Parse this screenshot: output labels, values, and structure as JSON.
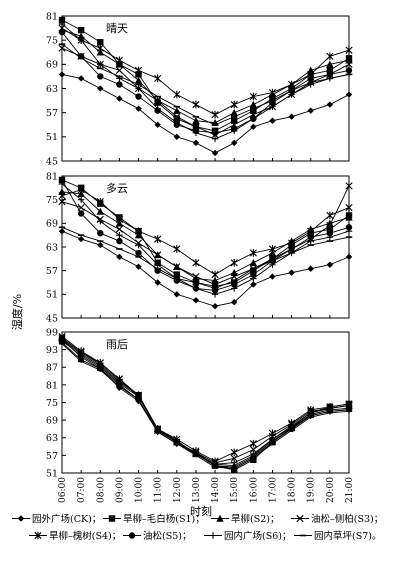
{
  "figure": {
    "ylabel": "湿度/%",
    "xlabel": "时刻"
  },
  "chart_data": {
    "type": "line",
    "x": [
      "06:00",
      "07:00",
      "08:00",
      "09:00",
      "10:00",
      "11:00",
      "12:00",
      "13:00",
      "14:00",
      "15:00",
      "16:00",
      "17:00",
      "18:00",
      "19:00",
      "20:00",
      "21:00"
    ],
    "panels": [
      {
        "title": "晴天",
        "ylim": [
          45,
          81
        ],
        "yticks": [
          45,
          51,
          57,
          63,
          69,
          75,
          81
        ],
        "series": [
          {
            "name": "园外广场(CK)",
            "marker": "diamond",
            "values": [
              66.5,
              65.5,
              63.0,
              60.5,
              58.0,
              54.0,
              51.0,
              49.5,
              47.0,
              49.5,
              53.5,
              55.0,
              56.0,
              57.5,
              59.0,
              61.5
            ]
          },
          {
            "name": "旱柳–毛白杨(S1)",
            "marker": "square",
            "values": [
              80.0,
              77.5,
              74.5,
              69.0,
              66.5,
              59.5,
              55.5,
              53.5,
              52.5,
              55.0,
              57.5,
              60.5,
              63.0,
              66.5,
              67.5,
              70.5
            ]
          },
          {
            "name": "旱柳(S2)",
            "marker": "triangle",
            "values": [
              77.5,
              76.0,
              72.0,
              69.0,
              65.0,
              60.0,
              57.5,
              55.0,
              54.5,
              57.0,
              59.0,
              61.5,
              64.0,
              67.5,
              69.0,
              70.0
            ]
          },
          {
            "name": "油松–侧柏(S3)",
            "marker": "x",
            "values": [
              73.0,
              71.0,
              69.0,
              67.5,
              63.0,
              60.0,
              56.0,
              53.5,
              51.5,
              54.0,
              56.5,
              58.5,
              61.5,
              64.5,
              66.5,
              69.0
            ]
          },
          {
            "name": "旱柳–槐树(S4)",
            "marker": "asterisk",
            "values": [
              78.0,
              75.0,
              73.0,
              70.0,
              67.5,
              65.5,
              61.5,
              59.0,
              56.5,
              59.0,
              61.0,
              62.0,
              64.0,
              66.5,
              71.0,
              72.5
            ]
          },
          {
            "name": "油松(S5)",
            "marker": "circle",
            "values": [
              77.0,
              71.0,
              66.0,
              64.0,
              61.0,
              57.5,
              54.0,
              52.5,
              52.0,
              53.0,
              55.5,
              59.5,
              62.5,
              65.5,
              66.5,
              67.5
            ]
          },
          {
            "name": "园内广场(S6)",
            "marker": "plus",
            "values": [
              79.0,
              75.0,
              69.0,
              65.5,
              63.0,
              58.0,
              54.5,
              52.0,
              50.5,
              52.5,
              55.5,
              58.5,
              61.5,
              64.0,
              65.5,
              66.5
            ]
          },
          {
            "name": "园内草坪(S7)",
            "marker": "dash",
            "values": [
              74.0,
              70.5,
              68.0,
              66.0,
              64.0,
              61.0,
              58.5,
              56.0,
              54.0,
              56.0,
              58.0,
              60.0,
              62.5,
              64.5,
              65.5,
              66.5
            ]
          }
        ]
      },
      {
        "title": "多云",
        "ylim": [
          45,
          81
        ],
        "yticks": [
          45,
          51,
          57,
          63,
          69,
          75,
          81
        ],
        "series": [
          {
            "name": "园外广场(CK)",
            "marker": "diamond",
            "values": [
              67.0,
              65.0,
              63.5,
              60.5,
              58.0,
              54.0,
              51.0,
              49.5,
              48.0,
              49.0,
              53.5,
              55.5,
              56.5,
              57.5,
              58.5,
              60.5
            ]
          },
          {
            "name": "旱柳–毛白杨(S1)",
            "marker": "square",
            "values": [
              80.0,
              78.0,
              74.0,
              70.5,
              67.0,
              59.0,
              56.0,
              54.0,
              53.0,
              54.0,
              57.0,
              60.0,
              63.5,
              66.5,
              67.5,
              71.0
            ]
          },
          {
            "name": "旱柳(S2)",
            "marker": "triangle",
            "values": [
              77.0,
              76.5,
              72.0,
              69.0,
              66.0,
              61.0,
              58.0,
              55.0,
              54.5,
              56.5,
              59.0,
              61.5,
              64.5,
              67.5,
              69.0,
              70.5
            ]
          },
          {
            "name": "油松–侧柏(S3)",
            "marker": "x",
            "values": [
              74.5,
              73.0,
              70.0,
              67.5,
              64.0,
              61.0,
              58.0,
              55.5,
              53.5,
              55.5,
              57.5,
              60.0,
              62.5,
              65.0,
              68.5,
              78.5
            ]
          },
          {
            "name": "旱柳–槐树(S4)",
            "marker": "asterisk",
            "values": [
              76.0,
              77.5,
              74.5,
              70.0,
              67.0,
              65.0,
              62.5,
              59.0,
              56.0,
              59.0,
              61.5,
              62.5,
              64.0,
              67.0,
              71.0,
              73.0
            ]
          },
          {
            "name": "油松(S5)",
            "marker": "circle",
            "values": [
              80.0,
              71.5,
              66.5,
              64.5,
              61.5,
              57.0,
              54.5,
              52.5,
              52.0,
              53.5,
              56.0,
              59.5,
              62.5,
              65.5,
              66.5,
              68.0
            ]
          },
          {
            "name": "园内广场(S6)",
            "marker": "plus",
            "values": [
              79.0,
              75.0,
              69.5,
              66.0,
              63.5,
              58.5,
              55.0,
              52.5,
              51.0,
              52.5,
              55.0,
              58.5,
              61.5,
              64.5,
              65.5,
              67.0
            ]
          },
          {
            "name": "园内草坪(S7)",
            "marker": "dash",
            "values": [
              68.0,
              66.0,
              64.5,
              62.5,
              60.5,
              57.5,
              55.0,
              54.0,
              52.5,
              54.5,
              57.5,
              59.5,
              61.5,
              63.5,
              64.5,
              65.5
            ]
          }
        ]
      },
      {
        "title": "雨后",
        "ylim": [
          51,
          99
        ],
        "yticks": [
          51,
          57,
          63,
          69,
          75,
          81,
          87,
          93,
          99
        ],
        "series": [
          {
            "name": "园外广场(CK)",
            "marker": "diamond",
            "values": [
              95.5,
              89.5,
              86.5,
              80.0,
              75.5,
              65.0,
              61.0,
              58.0,
              53.5,
              53.0,
              56.5,
              62.0,
              66.0,
              70.5,
              72.0,
              72.5
            ]
          },
          {
            "name": "旱柳–毛白杨(S1)",
            "marker": "square",
            "values": [
              96.5,
              91.5,
              87.5,
              82.0,
              77.5,
              66.0,
              61.5,
              57.5,
              53.5,
              52.0,
              55.5,
              61.5,
              66.5,
              71.5,
              73.5,
              74.5
            ]
          },
          {
            "name": "旱柳(S2)",
            "marker": "triangle",
            "values": [
              97.0,
              92.0,
              88.0,
              82.5,
              77.5,
              66.0,
              62.0,
              57.5,
              54.0,
              53.5,
              57.0,
              62.5,
              67.0,
              71.5,
              73.0,
              74.0
            ]
          },
          {
            "name": "油松–侧柏(S3)",
            "marker": "x",
            "values": [
              97.0,
              92.0,
              88.5,
              83.0,
              77.0,
              65.5,
              61.5,
              58.0,
              54.5,
              56.0,
              59.0,
              63.5,
              67.5,
              72.0,
              73.0,
              74.0
            ]
          },
          {
            "name": "旱柳–槐树(S4)",
            "marker": "asterisk",
            "values": [
              97.5,
              92.5,
              88.5,
              83.0,
              77.5,
              66.0,
              62.5,
              58.5,
              55.0,
              58.0,
              61.0,
              64.5,
              68.0,
              72.5,
              73.5,
              74.5
            ]
          },
          {
            "name": "油松(S5)",
            "marker": "circle",
            "values": [
              96.0,
              91.0,
              87.0,
              81.5,
              77.0,
              65.5,
              61.5,
              57.5,
              53.5,
              52.5,
              56.0,
              61.5,
              66.0,
              71.0,
              72.5,
              73.0
            ]
          },
          {
            "name": "园内广场(S6)",
            "marker": "plus",
            "values": [
              96.5,
              90.5,
              86.5,
              81.0,
              76.0,
              65.0,
              61.0,
              57.5,
              54.0,
              54.5,
              57.5,
              62.5,
              66.5,
              70.5,
              72.0,
              72.5
            ]
          },
          {
            "name": "园内草坪(S7)",
            "marker": "dash",
            "values": [
              95.0,
              89.0,
              86.0,
              80.5,
              76.0,
              65.0,
              61.0,
              57.0,
              53.0,
              52.5,
              56.0,
              61.0,
              65.5,
              70.0,
              71.5,
              72.0
            ]
          }
        ]
      }
    ],
    "legend": {
      "placement": "bottom",
      "row1": [
        "园外广场(CK)；",
        "旱柳–毛白杨(S1)；",
        "旱柳(S2)；",
        "油松–侧柏(S3)；"
      ],
      "row2": [
        "旱柳–槐树(S4)；",
        "油松(S5)；",
        "园内广场(S6)；",
        "园内草坪(S7)。"
      ]
    }
  }
}
